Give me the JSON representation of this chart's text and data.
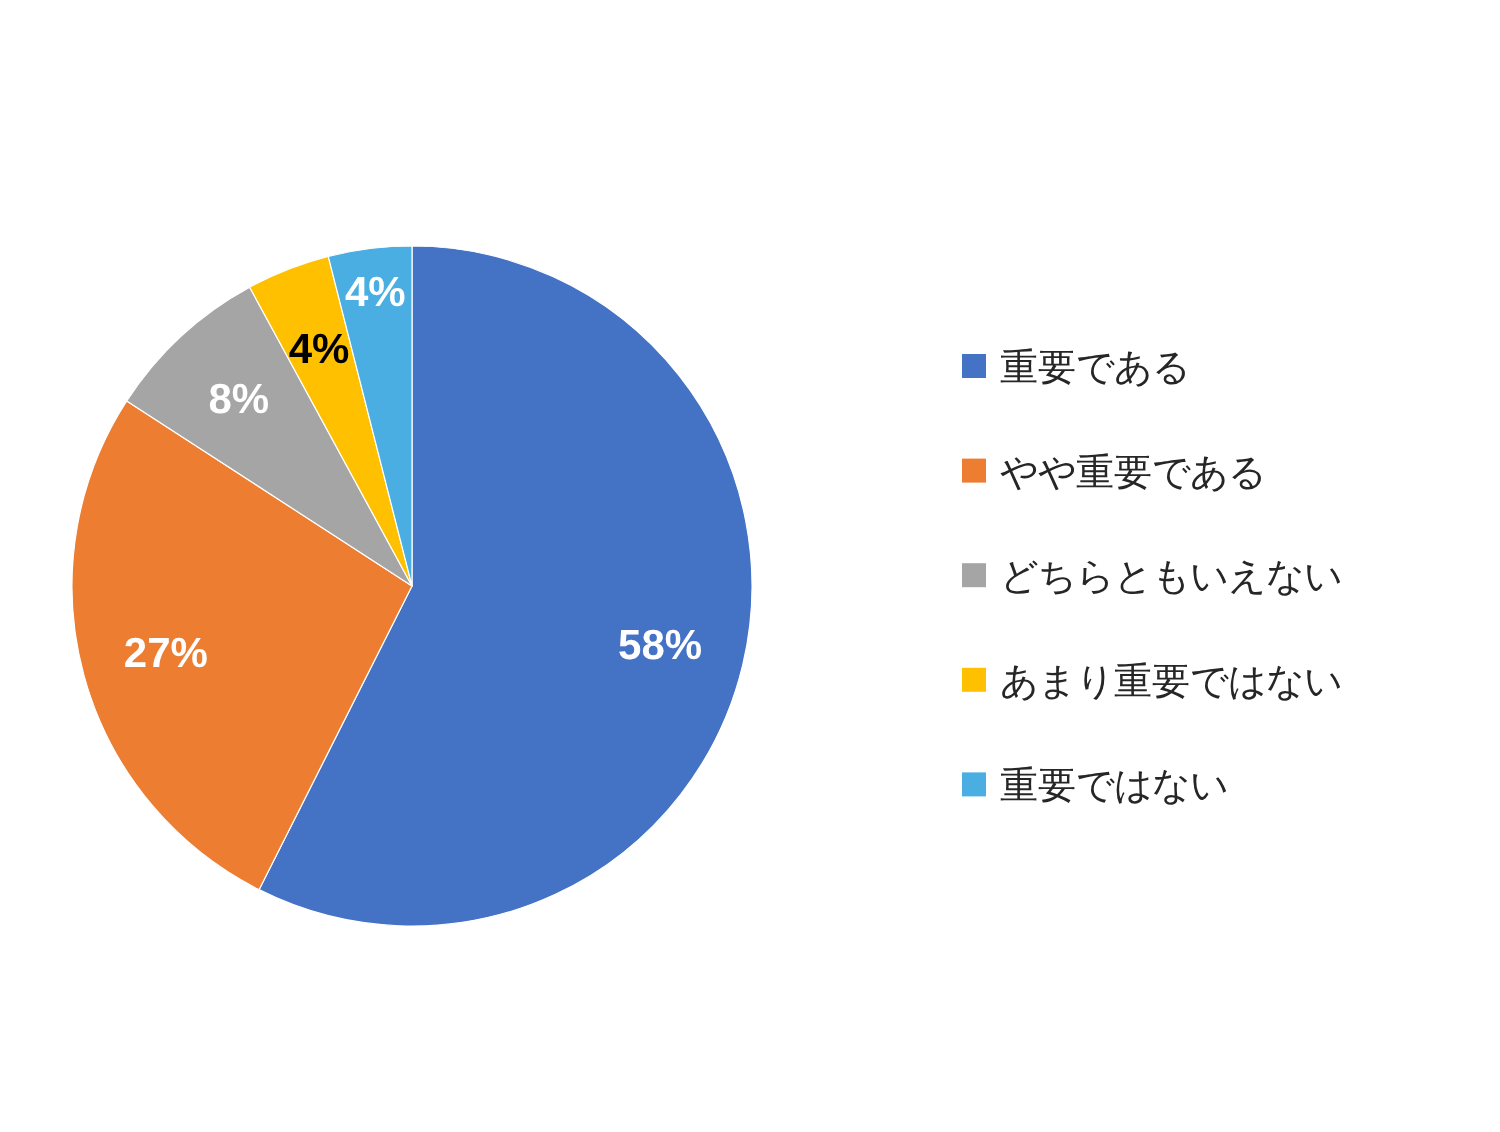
{
  "chart_data": {
    "type": "pie",
    "categories": [
      "重要である",
      "やや重要である",
      "どちらともいえない",
      "あまり重要ではない",
      "重要ではない"
    ],
    "values": [
      58,
      27,
      8,
      4,
      4
    ],
    "value_labels": [
      "58%",
      "27%",
      "8%",
      "4%",
      "4%"
    ],
    "colors": [
      "#4472c4",
      "#ed7d31",
      "#a5a5a5",
      "#ffc000",
      "#4aaee3"
    ],
    "legend": "right"
  }
}
